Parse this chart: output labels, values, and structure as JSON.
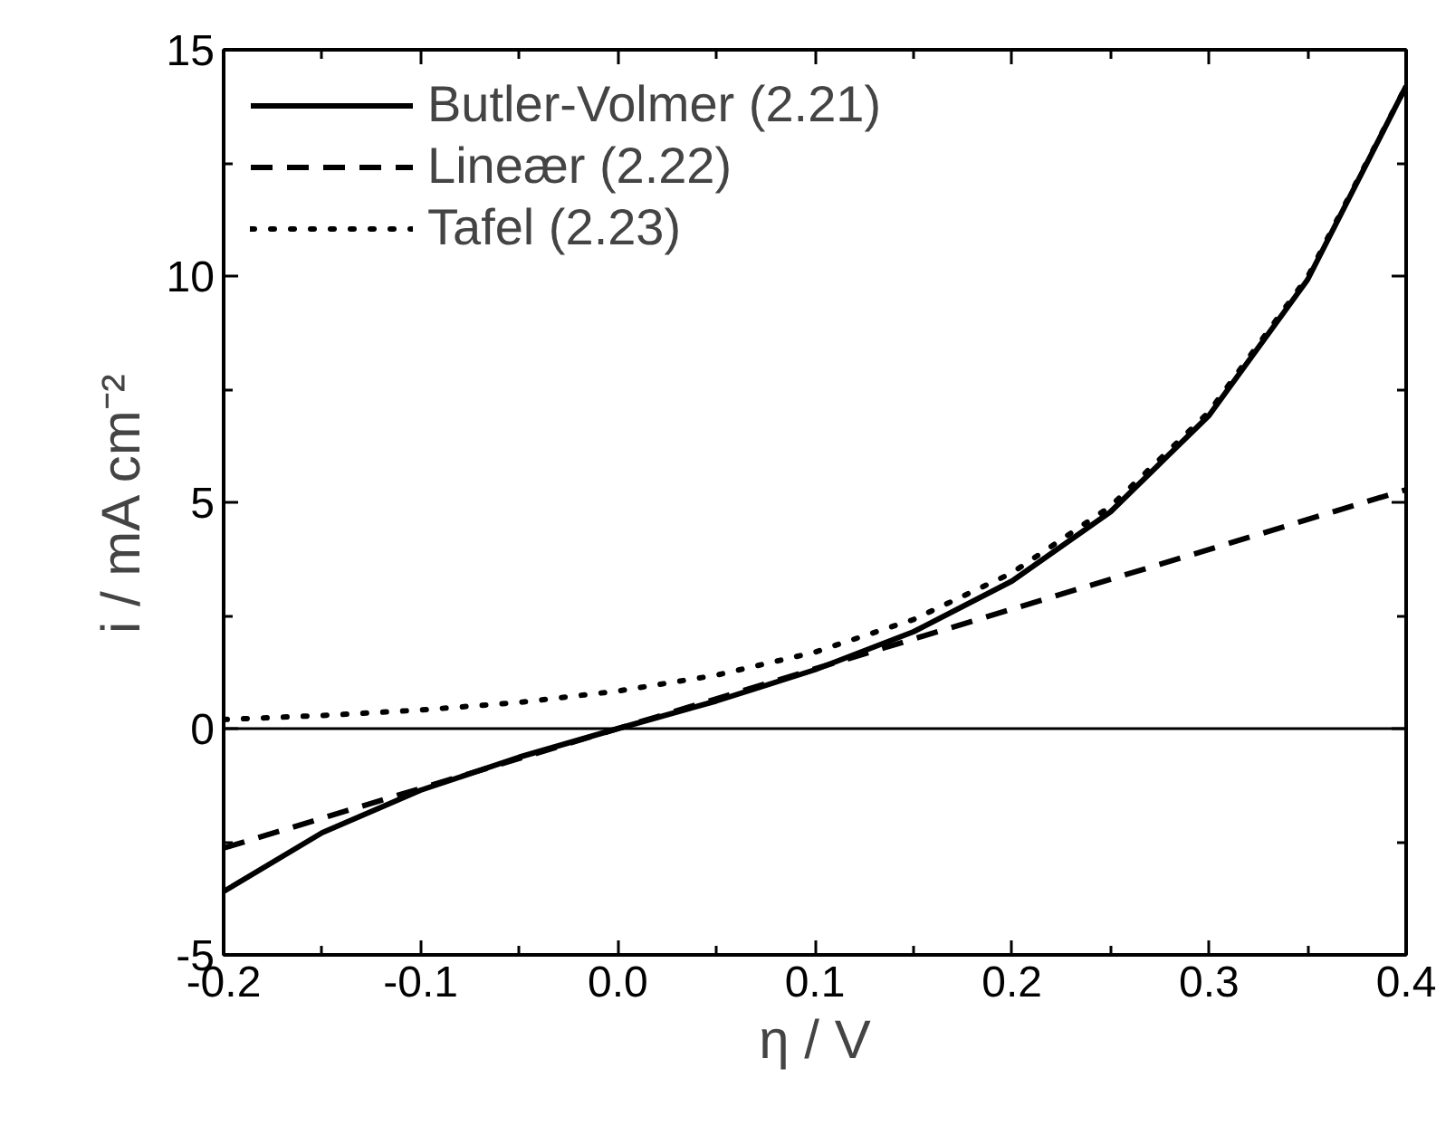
{
  "chart_data": {
    "type": "line",
    "xlabel": "η / V",
    "ylabel": "i / mA cm⁻²",
    "xlim": [
      -0.2,
      0.4
    ],
    "xticks": [
      {
        "value": -0.2,
        "label": "-0.2"
      },
      {
        "value": -0.1,
        "label": "-0.1"
      },
      {
        "value": 0,
        "label": "0.0"
      },
      {
        "value": 0.1,
        "label": "0.1"
      },
      {
        "value": 0.2,
        "label": "0.2"
      },
      {
        "value": 0.3,
        "label": "0.3"
      },
      {
        "value": 0.4,
        "label": "0.4"
      }
    ],
    "ylim": [
      -5,
      15
    ],
    "yticks": [
      -5,
      0,
      5,
      10,
      15
    ],
    "grid": false,
    "legend": "top left",
    "marker": "none",
    "ref_lines": [
      {
        "axis": "y",
        "value": 0,
        "color": "#000000",
        "line_style": "solid"
      }
    ],
    "series": [
      {
        "name": "Butler-Volmer (2.21)",
        "color": "#000000",
        "line_style": "solid",
        "x": [
          -0.2,
          -0.15,
          -0.1,
          -0.05,
          0,
          0.05,
          0.1,
          0.15,
          0.2,
          0.25,
          0.3,
          0.35,
          0.4
        ],
        "values": [
          -3.6,
          -2.3,
          -1.36,
          -0.63,
          0,
          0.61,
          1.3,
          2.14,
          3.26,
          4.79,
          6.92,
          9.92,
          14.2
        ]
      },
      {
        "name": "Lineær (2.22)",
        "color": "#000000",
        "line_style": "dashed",
        "x": [
          -0.2,
          0,
          0.2,
          0.4
        ],
        "values": [
          -2.64,
          0,
          2.64,
          5.28
        ]
      },
      {
        "name": "Tafel (2.23)",
        "color": "#000000",
        "line_style": "dotted",
        "x": [
          -0.2,
          -0.15,
          -0.1,
          -0.05,
          0,
          0.05,
          0.1,
          0.15,
          0.2,
          0.25,
          0.3,
          0.35,
          0.4
        ],
        "values": [
          0.2,
          0.29,
          0.41,
          0.58,
          0.83,
          1.18,
          1.69,
          2.41,
          3.44,
          4.91,
          7.0,
          9.98,
          14.2
        ]
      }
    ]
  }
}
